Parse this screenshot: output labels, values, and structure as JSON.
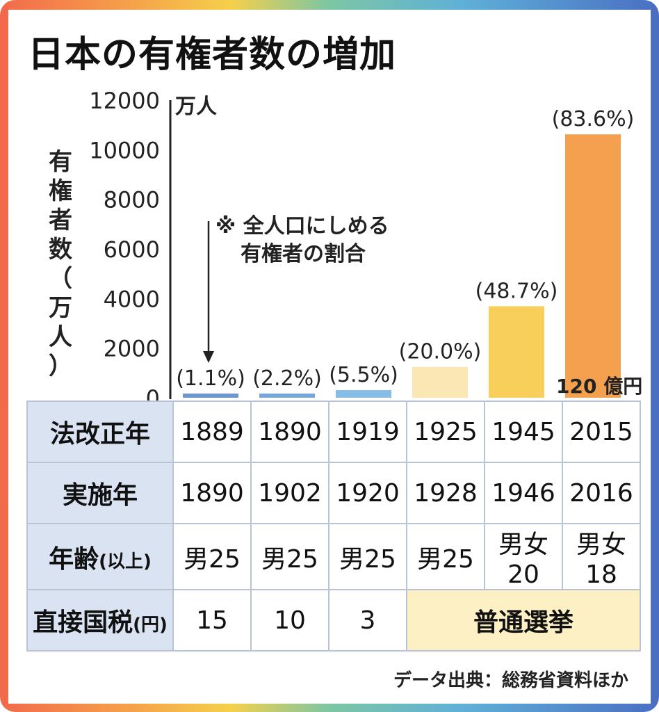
{
  "title": "日本の有権者数の増加",
  "y_axis_label_chars": [
    "有",
    "権",
    "者",
    "数",
    "（",
    "万",
    "人",
    "）"
  ],
  "unit_label": "万人",
  "note_lines": [
    "※ 全人口にしめる",
    "有権者の割合"
  ],
  "money_label": "120 億円",
  "chart_data": {
    "type": "bar",
    "categories": [
      "1889",
      "1890",
      "1919",
      "1925",
      "1945",
      "2015"
    ],
    "values": [
      45,
      98,
      307,
      1241,
      3688,
      10620
    ],
    "data_labels": [
      "(1.1%)",
      "(2.2%)",
      "(5.5%)",
      "(20.0%)",
      "(48.7%)",
      "(83.6%)"
    ],
    "colors": [
      "#6c97cc",
      "#79a6d8",
      "#86bde6",
      "#fae7b4",
      "#f7cf5a",
      "#f5a04e"
    ],
    "ylim": [
      0,
      12000
    ],
    "yticks": [
      "0",
      "2000",
      "4000",
      "6000",
      "8000",
      "10000",
      "12000"
    ],
    "ylabel": "有権者数（万人）",
    "grid": false
  },
  "table": {
    "rows": [
      {
        "header": "法改正年",
        "header_suffix": "",
        "cells": [
          "1889",
          "1890",
          "1919",
          "1925",
          "1945",
          "2015"
        ]
      },
      {
        "header": "実施年",
        "header_suffix": "",
        "cells": [
          "1890",
          "1902",
          "1920",
          "1928",
          "1946",
          "2016"
        ]
      },
      {
        "header": "年齢",
        "header_suffix": "(以上)",
        "cells": [
          "男25",
          "男25",
          "男25",
          "男25",
          "男女20",
          "男女18"
        ]
      },
      {
        "header": "直接国税",
        "header_suffix": "(円)",
        "cells": [
          "15",
          "10",
          "3"
        ],
        "merged": "普通選挙"
      }
    ]
  },
  "source": "データ出典：総務省資料ほか"
}
